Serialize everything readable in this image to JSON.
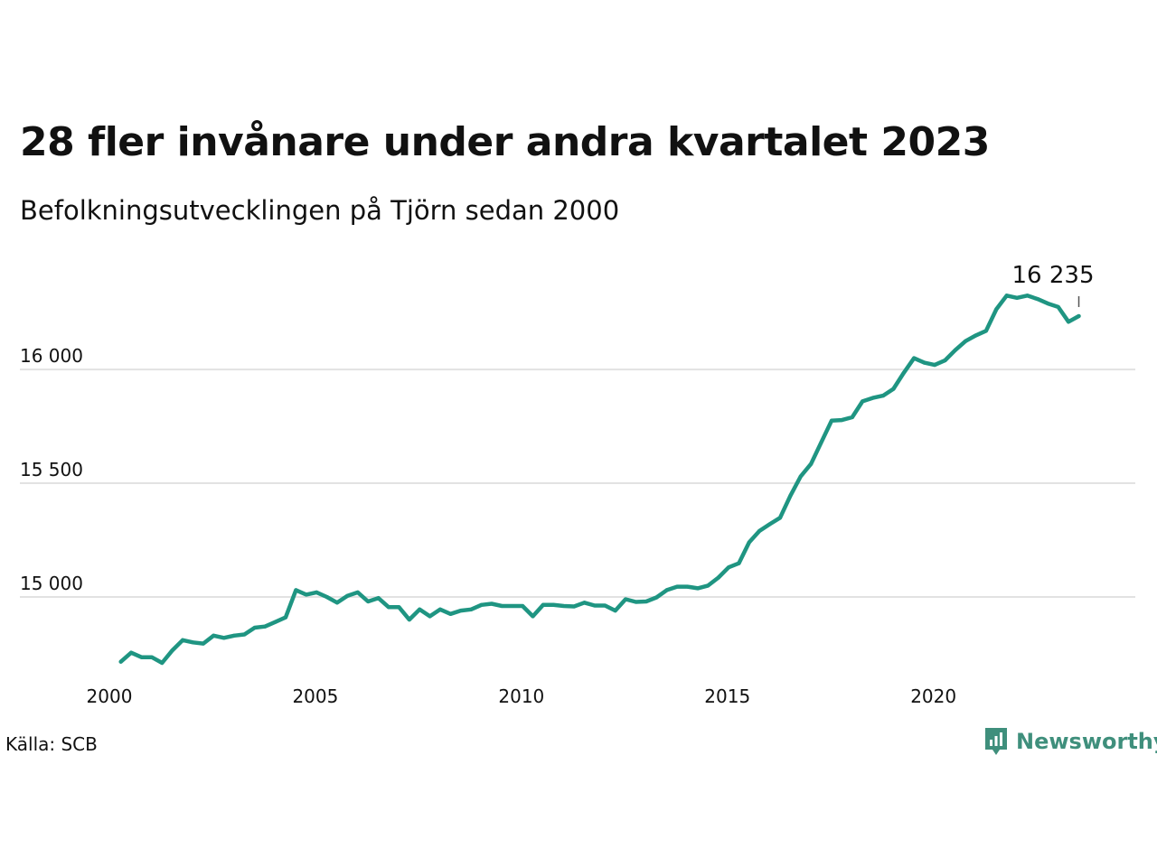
{
  "title": "28 fler invånare under andra kvartalet 2023",
  "subtitle": "Befolkningsutvecklingen på Tjörn sedan 2000",
  "source": "Källa: SCB",
  "brand": {
    "name": "Newsworthy",
    "icon": "bar-chart-speech-bubble-icon",
    "color": "#3f8f7c"
  },
  "colors": {
    "line": "#1f9582",
    "grid": "#e2e2e2",
    "text": "#111111"
  },
  "chart_data": {
    "type": "line",
    "title": "28 fler invånare under andra kvartalet 2023",
    "subtitle": "Befolkningsutvecklingen på Tjörn sedan 2000",
    "xlabel": "",
    "ylabel": "",
    "x_ticks": [
      "2000",
      "2005",
      "2010",
      "2015",
      "2020"
    ],
    "x_tick_values": [
      2000,
      2005,
      2010,
      2015,
      2020
    ],
    "y_ticks": [
      "15 000",
      "15 500",
      "16 000"
    ],
    "y_tick_values": [
      15000,
      15500,
      16000
    ],
    "ylim": [
      14700,
      16360
    ],
    "xlim": [
      2000,
      2024
    ],
    "grid": "horizontal",
    "last_value_label": "16 235",
    "series": [
      {
        "x": [
          2000.125,
          2000.375,
          2000.625,
          2000.875,
          2001.125,
          2001.375,
          2001.625,
          2001.875,
          2002.125,
          2002.375,
          2002.625,
          2002.875,
          2003.125,
          2003.375,
          2003.625,
          2003.875,
          2004.125,
          2004.375,
          2004.625,
          2004.875,
          2005.125,
          2005.375,
          2005.625,
          2005.875,
          2006.125,
          2006.375,
          2006.625,
          2006.875,
          2007.125,
          2007.375,
          2007.625,
          2007.875,
          2008.125,
          2008.375,
          2008.625,
          2008.875,
          2009.125,
          2009.375,
          2009.625,
          2009.875,
          2010.125,
          2010.375,
          2010.625,
          2010.875,
          2011.125,
          2011.375,
          2011.625,
          2011.875,
          2012.125,
          2012.375,
          2012.625,
          2012.875,
          2013.125,
          2013.375,
          2013.625,
          2013.875,
          2014.125,
          2014.375,
          2014.625,
          2014.875,
          2015.125,
          2015.375,
          2015.625,
          2015.875,
          2016.125,
          2016.375,
          2016.625,
          2016.875,
          2017.125,
          2017.375,
          2017.625,
          2017.875,
          2018.125,
          2018.375,
          2018.625,
          2018.875,
          2019.125,
          2019.375,
          2019.625,
          2019.875,
          2020.125,
          2020.375,
          2020.625,
          2020.875,
          2021.125,
          2021.375,
          2021.625,
          2021.875,
          2022.125,
          2022.375,
          2022.625,
          2022.875,
          2023.125,
          2023.375
        ],
        "values": [
          14715,
          14755,
          14735,
          14735,
          14710,
          14765,
          14810,
          14800,
          14795,
          14830,
          14820,
          14830,
          14835,
          14865,
          14870,
          14890,
          14910,
          15030,
          15010,
          15020,
          15000,
          14975,
          15005,
          15020,
          14980,
          14995,
          14955,
          14955,
          14900,
          14945,
          14915,
          14945,
          14925,
          14940,
          14945,
          14965,
          14970,
          14960,
          14960,
          14960,
          14915,
          14965,
          14965,
          14960,
          14958,
          14975,
          14962,
          14962,
          14940,
          14990,
          14978,
          14980,
          14998,
          15030,
          15045,
          15045,
          15038,
          15050,
          15085,
          15130,
          15148,
          15240,
          15290,
          15320,
          15348,
          15445,
          15530,
          15585,
          15680,
          15775,
          15778,
          15790,
          15860,
          15875,
          15885,
          15915,
          15985,
          16050,
          16030,
          16020,
          16040,
          16085,
          16125,
          16150,
          16170,
          16265,
          16325,
          16315,
          16325,
          16310,
          16290,
          16275,
          16210,
          16235
        ]
      }
    ]
  }
}
